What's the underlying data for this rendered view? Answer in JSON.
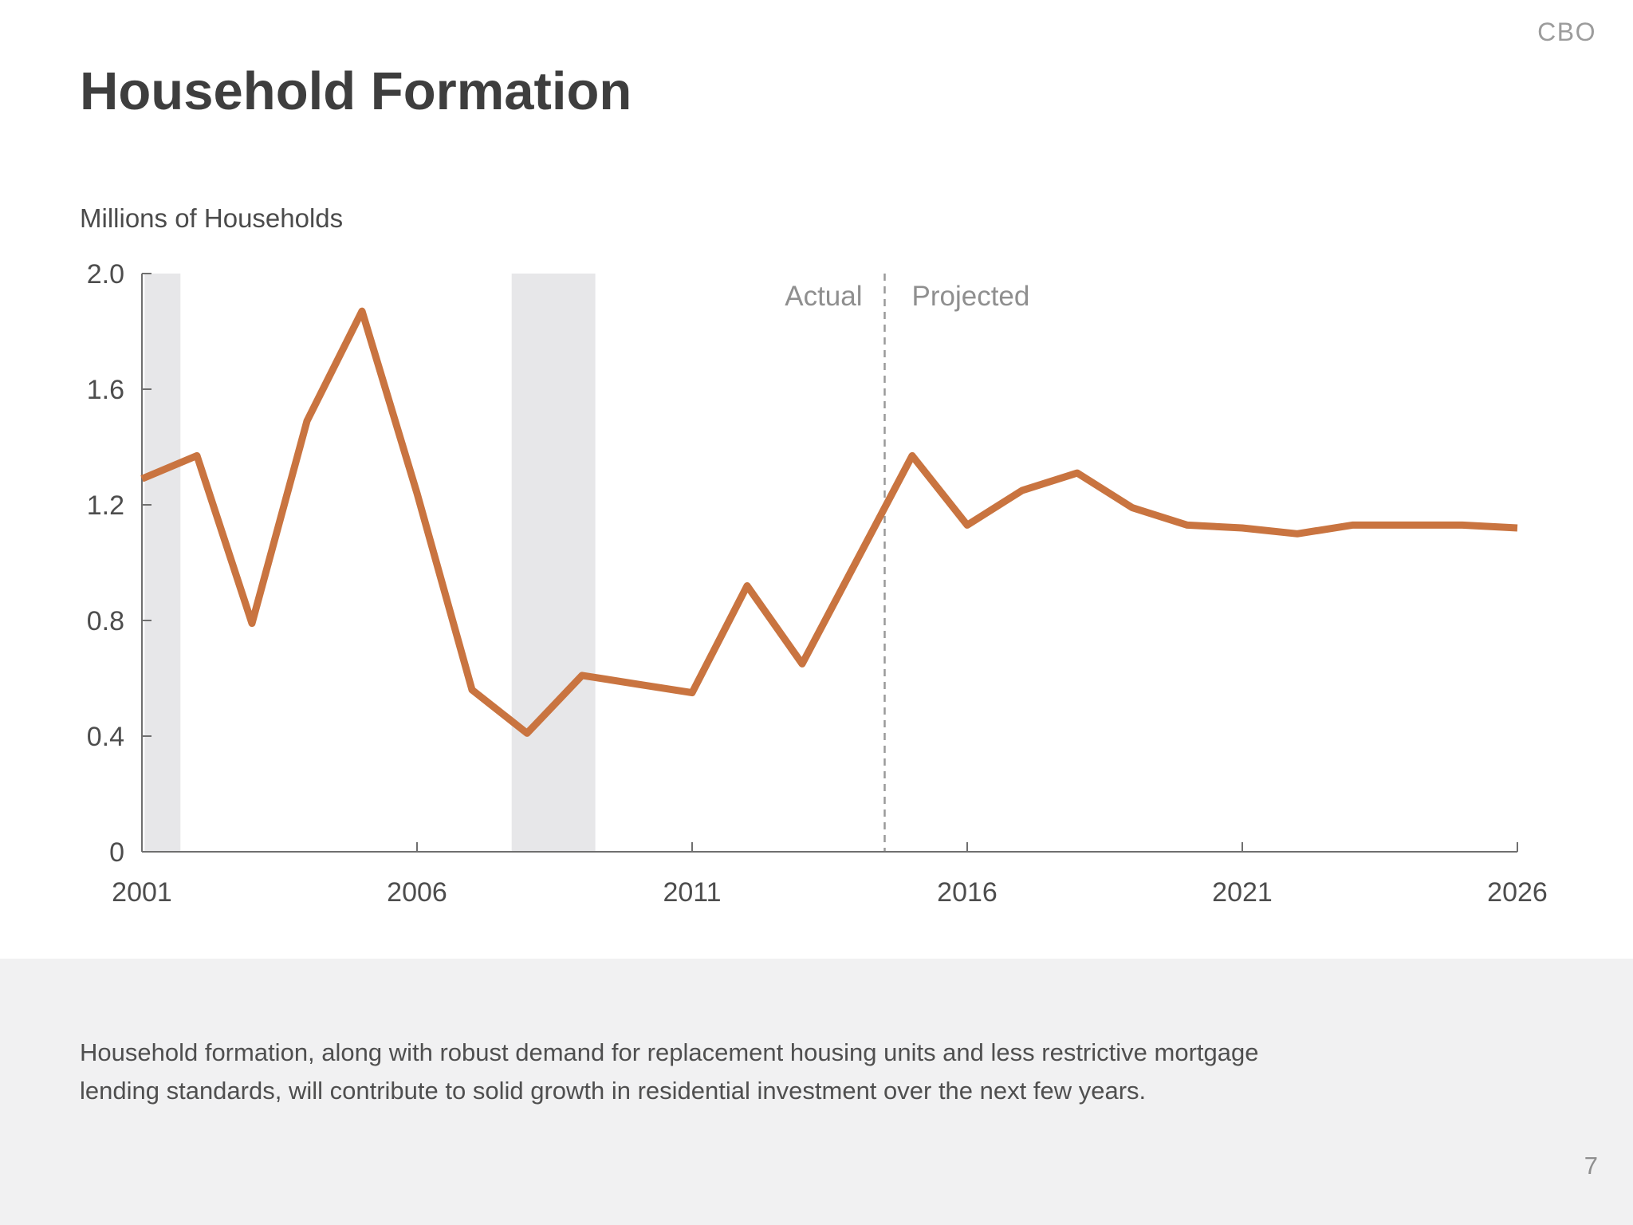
{
  "header": {
    "logo": "CBO"
  },
  "title": "Household Formation",
  "chart_data": {
    "type": "line",
    "title": "Household Formation",
    "units_label": "Millions of Households",
    "series_name": "Household formation, millions of households",
    "x": [
      2001,
      2002,
      2003,
      2004,
      2005,
      2006,
      2007,
      2008,
      2009,
      2010,
      2011,
      2012,
      2013,
      2014,
      2015,
      2016,
      2017,
      2018,
      2019,
      2020,
      2021,
      2022,
      2023,
      2024,
      2025,
      2026
    ],
    "values": [
      1.29,
      1.37,
      0.79,
      1.49,
      1.87,
      1.24,
      0.56,
      0.41,
      0.61,
      0.58,
      0.55,
      0.92,
      0.65,
      1.01,
      1.37,
      1.13,
      1.25,
      1.31,
      1.19,
      1.13,
      1.12,
      1.1,
      1.13,
      1.13,
      1.13,
      1.12
    ],
    "xlim": [
      2001,
      2026
    ],
    "ylim": [
      0,
      2.0
    ],
    "yticks": [
      0,
      0.4,
      0.8,
      1.2,
      1.6,
      2.0
    ],
    "ytick_labels": [
      "0",
      "0.4",
      "0.8",
      "1.2",
      "1.6",
      "2.0"
    ],
    "xticks": [
      2001,
      2006,
      2011,
      2016,
      2021,
      2026
    ],
    "grid": false,
    "divider_year": 2014.5,
    "divider_labels": {
      "left": "Actual",
      "right": "Projected"
    },
    "recession_bands": [
      [
        2001.05,
        2001.7
      ],
      [
        2007.72,
        2009.24
      ]
    ],
    "colors": {
      "line": "#C97440",
      "band": "#E7E7E9",
      "axis": "#6f6f6f",
      "tick_text": "#4d4d4d",
      "divider": "#9a9a9a",
      "divider_text": "#8f8f8f"
    }
  },
  "caption": {
    "line1": "Household formation, along with robust demand for replacement housing units and less restrictive mortgage",
    "line2": "lending standards, will contribute to solid growth in residential investment over the next few years."
  },
  "page_number": "7"
}
